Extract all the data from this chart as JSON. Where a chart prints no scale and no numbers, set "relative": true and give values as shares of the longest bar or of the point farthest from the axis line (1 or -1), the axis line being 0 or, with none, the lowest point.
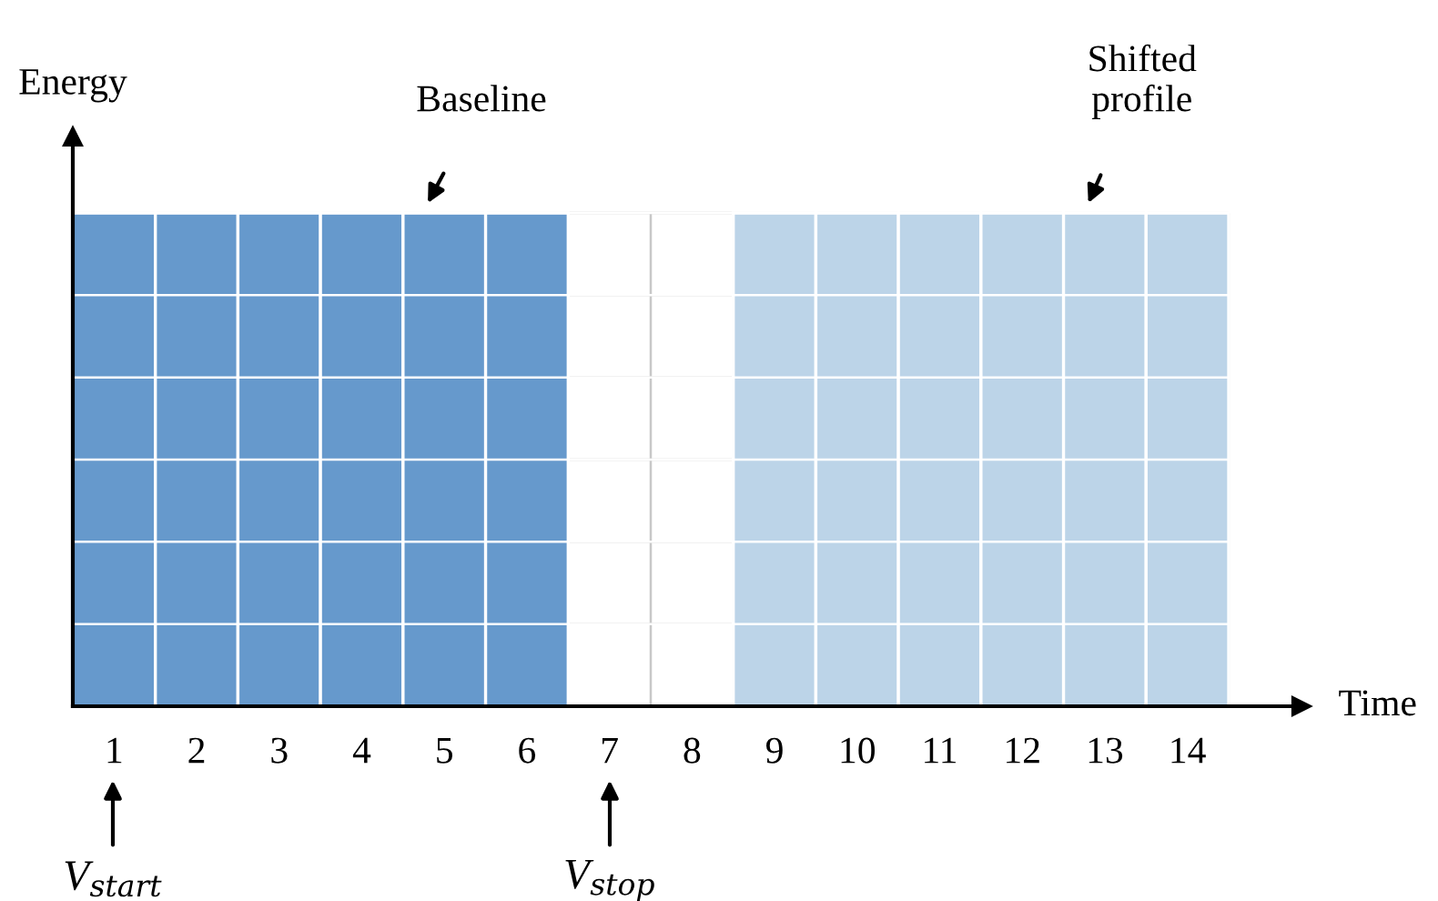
{
  "chart_data": {
    "type": "bar",
    "relative": true,
    "xlabel": "Time",
    "ylabel": "Energy",
    "categories": [
      "1",
      "2",
      "3",
      "4",
      "5",
      "6",
      "7",
      "8",
      "9",
      "10",
      "11",
      "12",
      "13",
      "14"
    ],
    "values": [
      1,
      1,
      1,
      1,
      1,
      1,
      null,
      null,
      1,
      1,
      1,
      1,
      1,
      1
    ],
    "colors": [
      "#6699cc",
      "#6699cc",
      "#6699cc",
      "#6699cc",
      "#6699cc",
      "#6699cc",
      "#ffffff",
      "#ffffff",
      "#bcd4e8",
      "#bcd4e8",
      "#bcd4e8",
      "#bcd4e8",
      "#bcd4e8",
      "#bcd4e8"
    ],
    "grid": true,
    "annotations": [
      {
        "text": "Baseline",
        "x": "5",
        "y": 1
      },
      {
        "text": "Shifted\nprofile",
        "x": "13",
        "y": 1
      },
      "V$_{start}$",
      "V$_{stop}$"
    ]
  }
}
